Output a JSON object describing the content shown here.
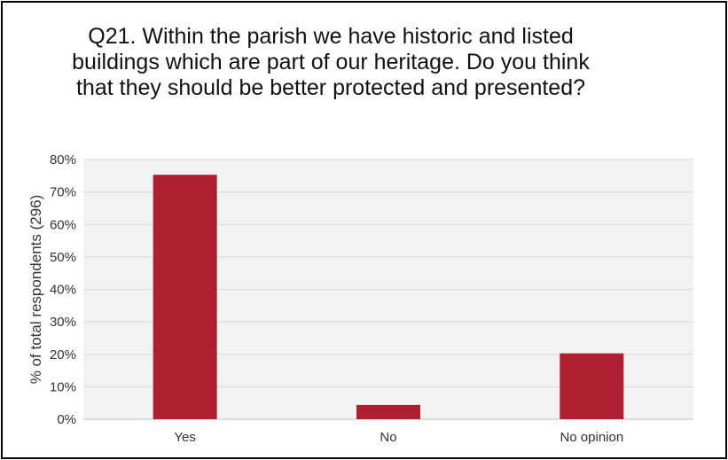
{
  "chart_data": {
    "type": "bar",
    "title": "Q21. Within the parish we have historic and listed buildings which are part of our heritage.  Do you think that they should be better protected and presented?",
    "categories": [
      "Yes",
      "No",
      "No opinion"
    ],
    "values": [
      75.3,
      4.4,
      20.3
    ],
    "ylabel": "% of total respondents (296)",
    "xlabel": "",
    "ylim": [
      0,
      80
    ],
    "yticks": [
      "0%",
      "10%",
      "20%",
      "30%",
      "40%",
      "50%",
      "60%",
      "70%",
      "80%"
    ],
    "grid": true,
    "legend": "none",
    "bar_color": "#AE1F32",
    "plot_background": "#F2F2F2",
    "gridline_color": "#D9D9D9"
  }
}
